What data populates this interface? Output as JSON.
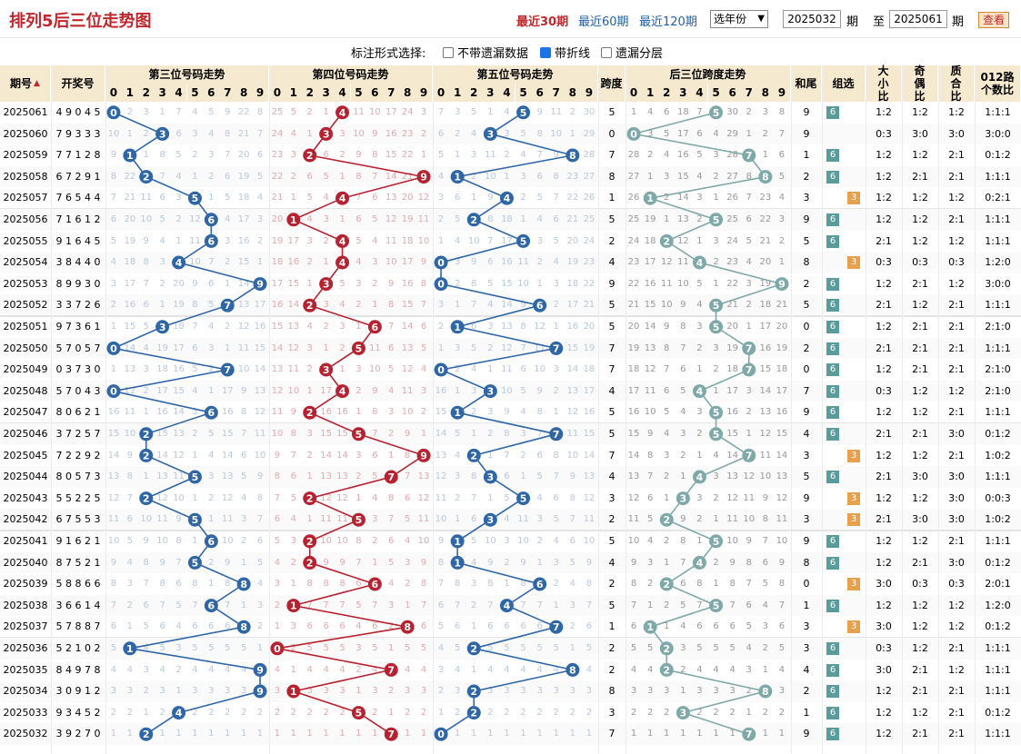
{
  "header": {
    "title": "排列5后三位走势图",
    "quick_links": [
      "最近30期",
      "最近60期",
      "最近120期"
    ],
    "year_select": "选年份",
    "from_issue": "2025032",
    "to_issue": "2025061",
    "qi_label": "期",
    "to_label": "至",
    "view_button": "查看"
  },
  "options": {
    "label": "标注形式选择:",
    "items": [
      {
        "label": "不带遗漏数据",
        "checked": false
      },
      {
        "label": "带折线",
        "checked": true
      },
      {
        "label": "遗漏分层",
        "checked": false
      }
    ]
  },
  "columns": {
    "issue": "期号",
    "draw": "开奖号",
    "pos3": "第三位号码走势",
    "pos4": "第四位号码走势",
    "pos5": "第五位号码走势",
    "span": "跨度",
    "span_trend": "后三位跨度走势",
    "sum_tail": "和尾",
    "group": "组选",
    "big_small": "大小比",
    "odd_even": "奇偶比",
    "prime_comp": "质合比",
    "road012": "012路个数比",
    "digits": [
      "0",
      "1",
      "2",
      "3",
      "4",
      "5",
      "6",
      "7",
      "8",
      "9"
    ]
  },
  "colors": {
    "pos3": "#2f66a6",
    "pos4": "#b82230",
    "pos5": "#2f66a6",
    "span": "#7fa8a8",
    "group6": "#5a9b9b",
    "group3": "#e8a04a"
  },
  "chart_data": {
    "type": "table",
    "rows": [
      {
        "issue": "2025061",
        "draw": "49045",
        "d3": 0,
        "d4": 4,
        "d5": 5,
        "span": 5,
        "sum_tail": 9,
        "group": "6",
        "big_small": "1:2",
        "odd_even": "1:2",
        "prime_comp": "1:2",
        "road012": "1:1:1"
      },
      {
        "issue": "2025060",
        "draw": "79333",
        "d3": 3,
        "d4": 3,
        "d5": 3,
        "span": 0,
        "sum_tail": 9,
        "group": "",
        "big_small": "0:3",
        "odd_even": "3:0",
        "prime_comp": "3:0",
        "road012": "3:0:0"
      },
      {
        "issue": "2025059",
        "draw": "77128",
        "d3": 1,
        "d4": 2,
        "d5": 8,
        "span": 7,
        "sum_tail": 1,
        "group": "6",
        "big_small": "1:2",
        "odd_even": "1:2",
        "prime_comp": "2:1",
        "road012": "0:1:2"
      },
      {
        "issue": "2025058",
        "draw": "67291",
        "d3": 2,
        "d4": 9,
        "d5": 1,
        "span": 8,
        "sum_tail": 2,
        "group": "6",
        "big_small": "1:2",
        "odd_even": "2:1",
        "prime_comp": "2:1",
        "road012": "1:1:1"
      },
      {
        "issue": "2025057",
        "draw": "76544",
        "d3": 5,
        "d4": 4,
        "d5": 4,
        "span": 1,
        "sum_tail": 3,
        "group": "3",
        "big_small": "1:2",
        "odd_even": "1:2",
        "prime_comp": "1:2",
        "road012": "0:2:1"
      },
      {
        "issue": "2025056",
        "draw": "71612",
        "d3": 6,
        "d4": 1,
        "d5": 2,
        "span": 5,
        "sum_tail": 9,
        "group": "6",
        "big_small": "1:2",
        "odd_even": "1:2",
        "prime_comp": "2:1",
        "road012": "1:1:1"
      },
      {
        "issue": "2025055",
        "draw": "91645",
        "d3": 6,
        "d4": 4,
        "d5": 5,
        "span": 2,
        "sum_tail": 5,
        "group": "6",
        "big_small": "2:1",
        "odd_even": "1:2",
        "prime_comp": "1:2",
        "road012": "1:1:1"
      },
      {
        "issue": "2025054",
        "draw": "38440",
        "d3": 4,
        "d4": 4,
        "d5": 0,
        "span": 4,
        "sum_tail": 8,
        "group": "3",
        "big_small": "0:3",
        "odd_even": "0:3",
        "prime_comp": "0:3",
        "road012": "1:2:0"
      },
      {
        "issue": "2025053",
        "draw": "89930",
        "d3": 9,
        "d4": 3,
        "d5": 0,
        "span": 9,
        "sum_tail": 2,
        "group": "6",
        "big_small": "1:2",
        "odd_even": "2:1",
        "prime_comp": "1:2",
        "road012": "3:0:0"
      },
      {
        "issue": "2025052",
        "draw": "33726",
        "d3": 7,
        "d4": 2,
        "d5": 6,
        "span": 5,
        "sum_tail": 5,
        "group": "6",
        "big_small": "2:1",
        "odd_even": "1:2",
        "prime_comp": "2:1",
        "road012": "1:1:1"
      },
      {
        "issue": "2025051",
        "draw": "97361",
        "d3": 3,
        "d4": 6,
        "d5": 1,
        "span": 5,
        "sum_tail": 0,
        "group": "6",
        "big_small": "1:2",
        "odd_even": "2:1",
        "prime_comp": "2:1",
        "road012": "2:1:0"
      },
      {
        "issue": "2025050",
        "draw": "57057",
        "d3": 0,
        "d4": 5,
        "d5": 7,
        "span": 7,
        "sum_tail": 2,
        "group": "6",
        "big_small": "2:1",
        "odd_even": "2:1",
        "prime_comp": "2:1",
        "road012": "1:1:1"
      },
      {
        "issue": "2025049",
        "draw": "03730",
        "d3": 7,
        "d4": 3,
        "d5": 0,
        "span": 7,
        "sum_tail": 0,
        "group": "6",
        "big_small": "1:2",
        "odd_even": "2:1",
        "prime_comp": "2:1",
        "road012": "2:1:0"
      },
      {
        "issue": "2025048",
        "draw": "57043",
        "d3": 0,
        "d4": 4,
        "d5": 3,
        "span": 4,
        "sum_tail": 7,
        "group": "6",
        "big_small": "0:3",
        "odd_even": "1:2",
        "prime_comp": "1:2",
        "road012": "2:1:0"
      },
      {
        "issue": "2025047",
        "draw": "80621",
        "d3": 6,
        "d4": 2,
        "d5": 1,
        "span": 5,
        "sum_tail": 9,
        "group": "6",
        "big_small": "1:2",
        "odd_even": "1:2",
        "prime_comp": "2:1",
        "road012": "1:1:1"
      },
      {
        "issue": "2025046",
        "draw": "37257",
        "d3": 2,
        "d4": 5,
        "d5": 7,
        "span": 5,
        "sum_tail": 4,
        "group": "6",
        "big_small": "2:1",
        "odd_even": "2:1",
        "prime_comp": "3:0",
        "road012": "0:1:2"
      },
      {
        "issue": "2025045",
        "draw": "72292",
        "d3": 2,
        "d4": 9,
        "d5": 2,
        "span": 7,
        "sum_tail": 3,
        "group": "3",
        "big_small": "1:2",
        "odd_even": "1:2",
        "prime_comp": "2:1",
        "road012": "1:0:2"
      },
      {
        "issue": "2025044",
        "draw": "80573",
        "d3": 5,
        "d4": 7,
        "d5": 3,
        "span": 4,
        "sum_tail": 5,
        "group": "6",
        "big_small": "2:1",
        "odd_even": "3:0",
        "prime_comp": "3:0",
        "road012": "1:1:1"
      },
      {
        "issue": "2025043",
        "draw": "55225",
        "d3": 2,
        "d4": 2,
        "d5": 5,
        "span": 3,
        "sum_tail": 9,
        "group": "3",
        "big_small": "1:2",
        "odd_even": "1:2",
        "prime_comp": "3:0",
        "road012": "0:0:3"
      },
      {
        "issue": "2025042",
        "draw": "67553",
        "d3": 5,
        "d4": 5,
        "d5": 3,
        "span": 2,
        "sum_tail": 3,
        "group": "3",
        "big_small": "2:1",
        "odd_even": "3:0",
        "prime_comp": "3:0",
        "road012": "1:0:2"
      },
      {
        "issue": "2025041",
        "draw": "91621",
        "d3": 6,
        "d4": 2,
        "d5": 1,
        "span": 5,
        "sum_tail": 9,
        "group": "6",
        "big_small": "1:2",
        "odd_even": "1:2",
        "prime_comp": "2:1",
        "road012": "1:1:1"
      },
      {
        "issue": "2025040",
        "draw": "87521",
        "d3": 5,
        "d4": 2,
        "d5": 1,
        "span": 4,
        "sum_tail": 8,
        "group": "6",
        "big_small": "1:2",
        "odd_even": "2:1",
        "prime_comp": "3:0",
        "road012": "0:1:2"
      },
      {
        "issue": "2025039",
        "draw": "58866",
        "d3": 8,
        "d4": 6,
        "d5": 6,
        "span": 2,
        "sum_tail": 0,
        "group": "3",
        "big_small": "3:0",
        "odd_even": "0:3",
        "prime_comp": "0:3",
        "road012": "2:0:1"
      },
      {
        "issue": "2025038",
        "draw": "36614",
        "d3": 6,
        "d4": 1,
        "d5": 4,
        "span": 5,
        "sum_tail": 1,
        "group": "6",
        "big_small": "1:2",
        "odd_even": "1:2",
        "prime_comp": "1:2",
        "road012": "1:2:0"
      },
      {
        "issue": "2025037",
        "draw": "57887",
        "d3": 8,
        "d4": 8,
        "d5": 7,
        "span": 1,
        "sum_tail": 3,
        "group": "3",
        "big_small": "3:0",
        "odd_even": "1:2",
        "prime_comp": "1:2",
        "road012": "0:1:2"
      },
      {
        "issue": "2025036",
        "draw": "52102",
        "d3": 1,
        "d4": 0,
        "d5": 2,
        "span": 2,
        "sum_tail": 3,
        "group": "6",
        "big_small": "0:3",
        "odd_even": "1:2",
        "prime_comp": "2:1",
        "road012": "1:1:1"
      },
      {
        "issue": "2025035",
        "draw": "84978",
        "d3": 9,
        "d4": 7,
        "d5": 8,
        "span": 2,
        "sum_tail": 4,
        "group": "6",
        "big_small": "3:0",
        "odd_even": "2:1",
        "prime_comp": "1:2",
        "road012": "1:1:1"
      },
      {
        "issue": "2025034",
        "draw": "30912",
        "d3": 9,
        "d4": 1,
        "d5": 2,
        "span": 8,
        "sum_tail": 2,
        "group": "6",
        "big_small": "1:2",
        "odd_even": "2:1",
        "prime_comp": "2:1",
        "road012": "1:1:1"
      },
      {
        "issue": "2025033",
        "draw": "93452",
        "d3": 4,
        "d4": 5,
        "d5": 2,
        "span": 3,
        "sum_tail": 1,
        "group": "6",
        "big_small": "1:2",
        "odd_even": "1:2",
        "prime_comp": "2:1",
        "road012": "0:1:2"
      },
      {
        "issue": "2025032",
        "draw": "39270",
        "d3": 2,
        "d4": 7,
        "d5": 0,
        "span": 7,
        "sum_tail": 9,
        "group": "6",
        "big_small": "1:2",
        "odd_even": "2:1",
        "prime_comp": "2:1",
        "road012": "1:1:1"
      }
    ]
  }
}
